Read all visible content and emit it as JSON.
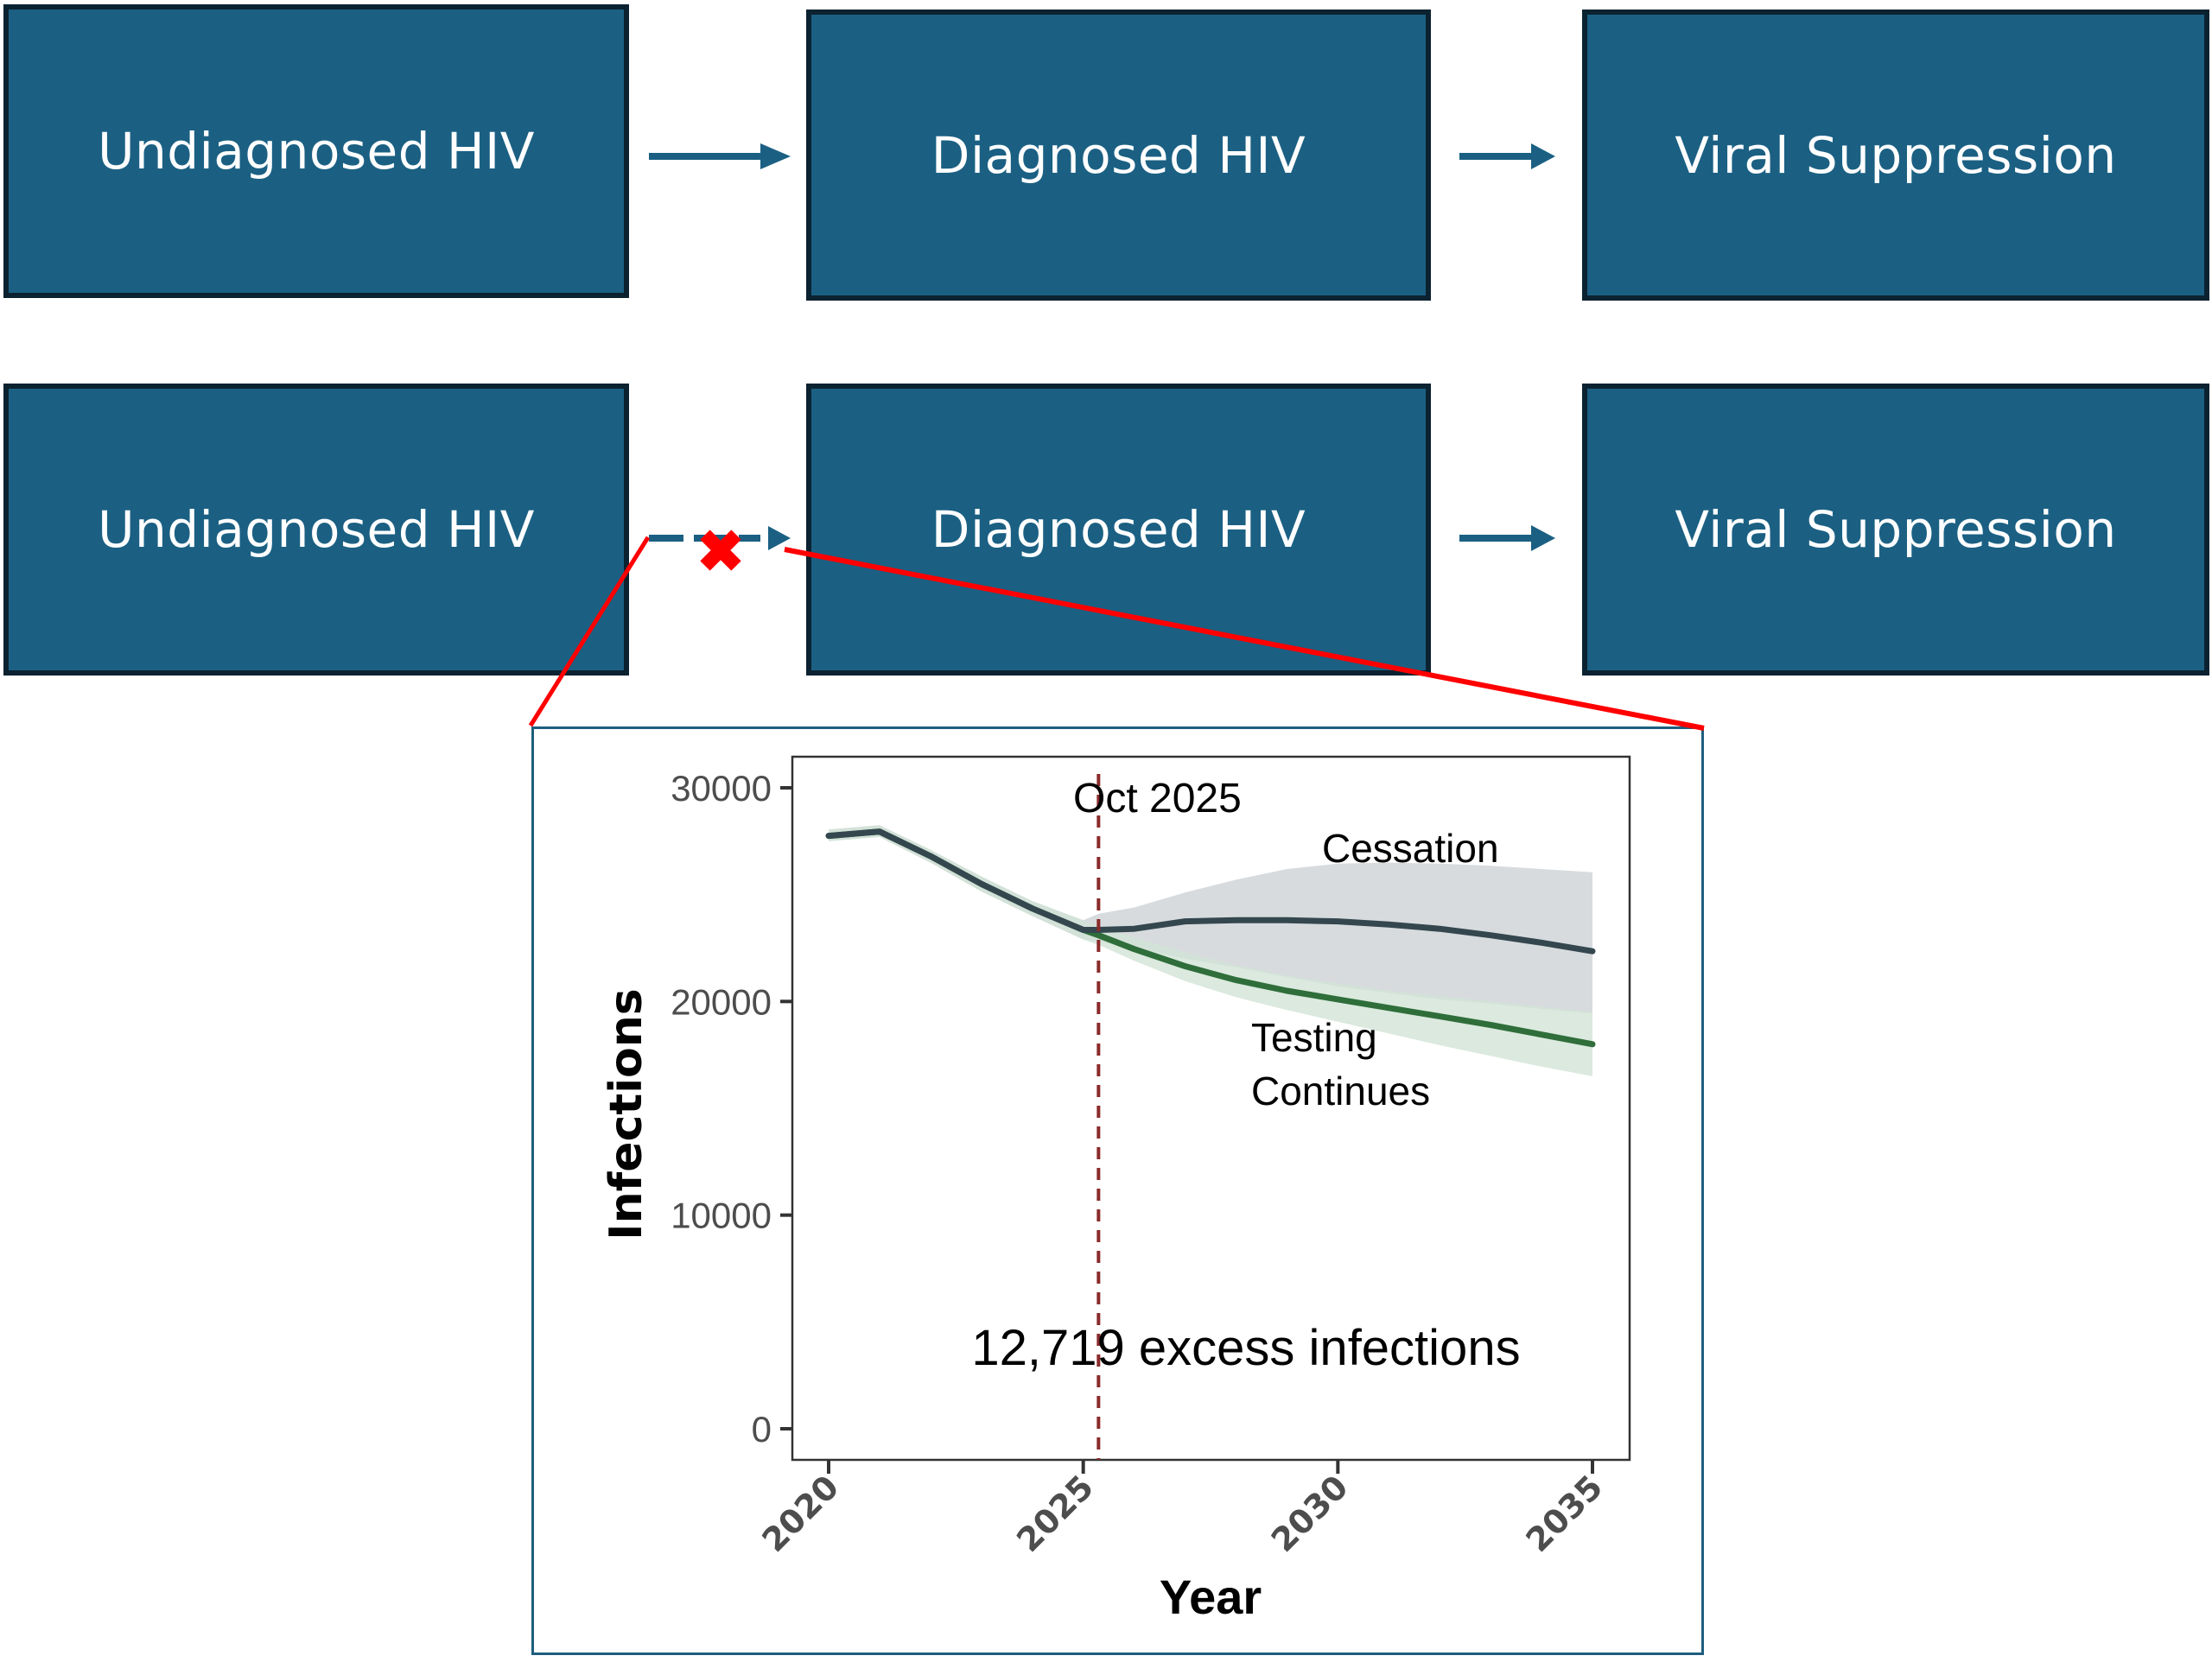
{
  "diagram": {
    "rows": [
      {
        "id": "testing-continues-pathway",
        "boxes": [
          "Undiagnosed HIV",
          "Diagnosed HIV",
          "Viral Suppression"
        ],
        "arrows": [
          "solid",
          "solid"
        ]
      },
      {
        "id": "testing-cessation-pathway",
        "boxes": [
          "Undiagnosed HIV",
          "Diagnosed HIV",
          "Viral Suppression"
        ],
        "arrows": [
          "dashed-blocked",
          "solid"
        ]
      }
    ],
    "colors": {
      "box_fill": "#1b6083",
      "box_border": "#0b2230",
      "arrow": "#1b6083",
      "blocked_marker": "#ff0000",
      "callout_line": "#ff0000",
      "inset_border": "#1e5e7e"
    },
    "blocked_marker_icon": "x-mark"
  },
  "chart_data": {
    "type": "line",
    "xlabel": "Year",
    "ylabel": "Infections",
    "xlim": [
      2019.4,
      2035.7
    ],
    "ylim": [
      -1500,
      31500
    ],
    "xticks": [
      2020,
      2025,
      2030,
      2035
    ],
    "yticks": [
      0,
      10000,
      20000,
      30000
    ],
    "grid": false,
    "vline": {
      "x": 2025.3,
      "label": "Oct 2025",
      "color": "#8b2a2a"
    },
    "annotation": "12,719 excess infections",
    "series": [
      {
        "name": "Cessation",
        "label": "Cessation",
        "color": "#34474f",
        "band_color": "#d5d9dc",
        "x": [
          2020,
          2021,
          2022,
          2023,
          2024,
          2025,
          2025.3,
          2026,
          2027,
          2028,
          2029,
          2030,
          2031,
          2032,
          2033,
          2034,
          2035
        ],
        "y": [
          27750,
          27950,
          26800,
          25500,
          24350,
          23350,
          23350,
          23400,
          23750,
          23800,
          23800,
          23750,
          23600,
          23400,
          23100,
          22750,
          22350
        ],
        "lower": [
          27500,
          27700,
          26500,
          25150,
          24000,
          22900,
          22800,
          22500,
          22000,
          21600,
          21150,
          20700,
          20400,
          20100,
          19900,
          19650,
          19450
        ],
        "upper": [
          28050,
          28250,
          27100,
          25850,
          24700,
          23800,
          24100,
          24400,
          25100,
          25700,
          26200,
          26450,
          26500,
          26450,
          26350,
          26200,
          26050
        ]
      },
      {
        "name": "Testing Continues",
        "label": "Testing\nContinues",
        "color": "#2f6e3a",
        "band_color": "#d2e4d6",
        "x": [
          2020,
          2021,
          2022,
          2023,
          2024,
          2025,
          2025.3,
          2026,
          2027,
          2028,
          2029,
          2030,
          2031,
          2032,
          2033,
          2034,
          2035
        ],
        "y": [
          27750,
          27950,
          26800,
          25500,
          24350,
          23350,
          23100,
          22450,
          21650,
          21000,
          20500,
          20100,
          19700,
          19300,
          18900,
          18450,
          18000
        ],
        "lower": [
          27500,
          27700,
          26500,
          25150,
          24000,
          22900,
          22650,
          21900,
          20950,
          20200,
          19600,
          19050,
          18500,
          17950,
          17450,
          16950,
          16500
        ],
        "upper": [
          28050,
          28250,
          27100,
          25850,
          24700,
          23800,
          23550,
          23000,
          22300,
          21700,
          21200,
          20850,
          20500,
          20250,
          20000,
          19750,
          19500
        ]
      }
    ]
  }
}
